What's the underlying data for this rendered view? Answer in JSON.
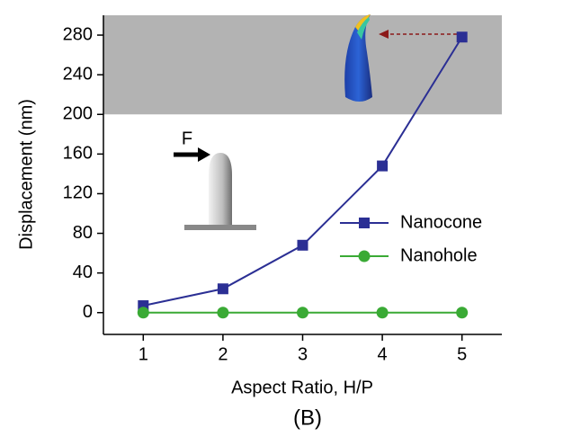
{
  "chart_data": {
    "type": "line",
    "x_label": "Aspect Ratio, H/P",
    "y_label": "Displacement (nm)",
    "annotation": "(B)",
    "force_label": "F",
    "x": [
      1,
      2,
      3,
      4,
      5
    ],
    "series": [
      {
        "name": "Nanocone",
        "color": "#2b2f94",
        "marker": "square",
        "values": [
          7,
          24,
          68,
          148,
          278
        ]
      },
      {
        "name": "Nanohole",
        "color": "#3aaa35",
        "marker": "circle",
        "values": [
          0,
          0,
          0,
          0,
          0
        ]
      }
    ],
    "xlim": [
      0.5,
      5.5
    ],
    "xticks": [
      1,
      2,
      3,
      4,
      5
    ],
    "ylim": [
      -22,
      300
    ],
    "yticks": [
      0,
      40,
      80,
      120,
      160,
      200,
      240,
      280
    ],
    "shaded_band": [
      200,
      300
    ],
    "shaded_color": "#b3b3b3",
    "legend": "right",
    "grid": false
  }
}
